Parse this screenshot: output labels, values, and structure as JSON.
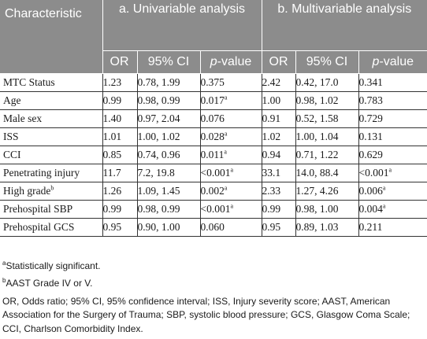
{
  "header": {
    "characteristic": "Characteristic",
    "group_a": "a. Univariable analysis",
    "group_b": "b. Multivariable analysis",
    "col_or": "OR",
    "col_ci": "95% CI",
    "col_p": "p",
    "col_p_suffix": "-value"
  },
  "rows": [
    {
      "label": "MTC Status",
      "a_or": "1.23",
      "a_ci": "0.78, 1.99",
      "a_p": "0.375",
      "a_sup": "",
      "b_or": "2.42",
      "b_ci": "0.42, 17.0",
      "b_p": "0.341",
      "b_sup": ""
    },
    {
      "label": "Age",
      "a_or": "0.99",
      "a_ci": "0.98, 0.99",
      "a_p": "0.017",
      "a_sup": "a",
      "b_or": "1.00",
      "b_ci": "0.98, 1.02",
      "b_p": "0.783",
      "b_sup": ""
    },
    {
      "label": "Male sex",
      "a_or": "1.40",
      "a_ci": "0.97, 2.04",
      "a_p": "0.076",
      "a_sup": "",
      "b_or": "0.91",
      "b_ci": "0.52, 1.58",
      "b_p": "0.729",
      "b_sup": ""
    },
    {
      "label": "ISS",
      "a_or": "1.01",
      "a_ci": "1.00, 1.02",
      "a_p": "0.028",
      "a_sup": "a",
      "b_or": "1.02",
      "b_ci": "1.00, 1.04",
      "b_p": "0.131",
      "b_sup": ""
    },
    {
      "label": "CCI",
      "a_or": "0.85",
      "a_ci": "0.74, 0.96",
      "a_p": "0.011",
      "a_sup": "a",
      "b_or": "0.94",
      "b_ci": "0.71, 1.22",
      "b_p": "0.629",
      "b_sup": ""
    },
    {
      "label": "Penetrating injury",
      "label_sup": "",
      "a_or": "11.7",
      "a_ci": "7.2, 19.8",
      "a_p": "<0.001",
      "a_sup": "a",
      "b_or": "33.1",
      "b_ci": "14.0, 88.4",
      "b_p": "<0.001",
      "b_sup": "a"
    },
    {
      "label": "High grade",
      "label_sup": "b",
      "a_or": "1.26",
      "a_ci": "1.09, 1.45",
      "a_p": "0.002",
      "a_sup": "a",
      "b_or": "2.33",
      "b_ci": "1.27, 4.26",
      "b_p": "0.006",
      "b_sup": "a"
    },
    {
      "label": "Prehospital SBP",
      "a_or": "0.99",
      "a_ci": "0.98, 0.99",
      "a_p": "<0.001",
      "a_sup": "a",
      "b_or": "0.99",
      "b_ci": "0.98, 1.00",
      "b_p": "0.004",
      "b_sup": "a"
    },
    {
      "label": "Prehospital GCS",
      "a_or": "0.95",
      "a_ci": "0.90, 1.00",
      "a_p": "0.060",
      "a_sup": "",
      "b_or": "0.95",
      "b_ci": "0.89, 1.03",
      "b_p": "0.211",
      "b_sup": ""
    }
  ],
  "notes": {
    "a_marker": "a",
    "a_text": "Statistically significant.",
    "b_marker": "b",
    "b_text": "AAST Grade IV or V.",
    "abbreviations": "OR, Odds ratio; 95% CI, 95% confidence interval; ISS, Injury severity score; AAST, American Association for the Surgery of Trauma; SBP, systolic blood pressure; GCS, Glasgow Coma Scale; CCI, Charlson Comorbidity Index."
  }
}
